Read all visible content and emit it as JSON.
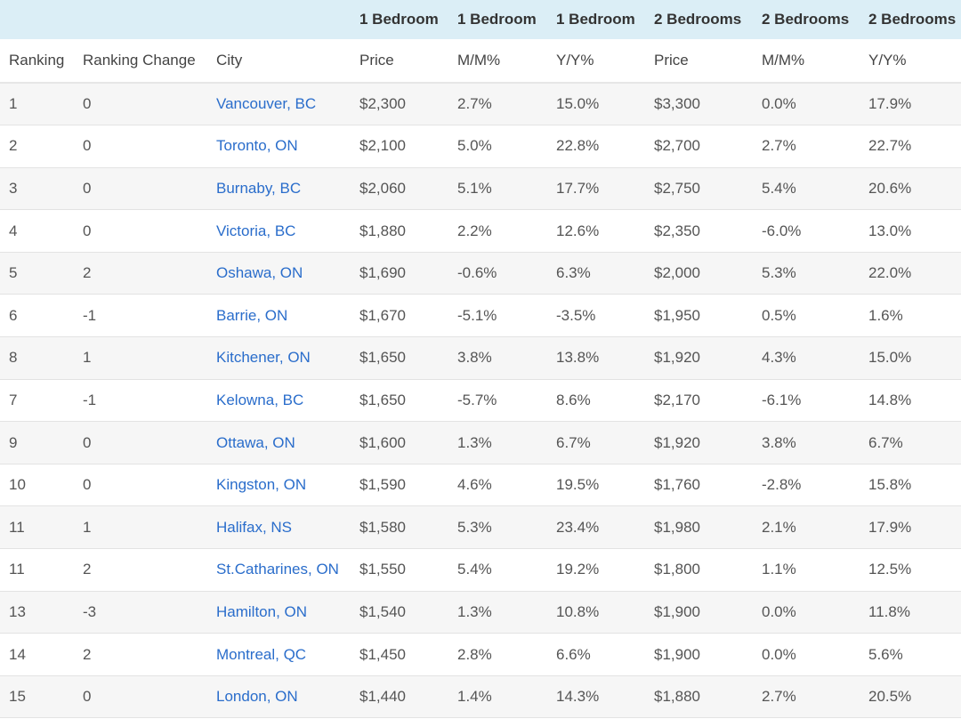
{
  "table": {
    "group_headers": [
      "",
      "",
      "",
      "1 Bedroom",
      "1 Bedroom",
      "1 Bedroom",
      "2 Bedrooms",
      "2 Bedrooms",
      "2 Bedrooms"
    ],
    "sub_headers": [
      "Ranking",
      "Ranking Change",
      "City",
      "Price",
      "M/M%",
      "Y/Y%",
      "Price",
      "M/M%",
      "Y/Y%"
    ],
    "rows": [
      [
        "1",
        "0",
        "Vancouver, BC",
        "$2,300",
        "2.7%",
        "15.0%",
        "$3,300",
        "0.0%",
        "17.9%"
      ],
      [
        "2",
        "0",
        "Toronto, ON",
        "$2,100",
        "5.0%",
        "22.8%",
        "$2,700",
        "2.7%",
        "22.7%"
      ],
      [
        "3",
        "0",
        "Burnaby, BC",
        "$2,060",
        "5.1%",
        "17.7%",
        "$2,750",
        "5.4%",
        "20.6%"
      ],
      [
        "4",
        "0",
        "Victoria, BC",
        "$1,880",
        "2.2%",
        "12.6%",
        "$2,350",
        "-6.0%",
        "13.0%"
      ],
      [
        "5",
        "2",
        "Oshawa, ON",
        "$1,690",
        "-0.6%",
        "6.3%",
        "$2,000",
        "5.3%",
        "22.0%"
      ],
      [
        "6",
        "-1",
        "Barrie, ON",
        "$1,670",
        "-5.1%",
        "-3.5%",
        "$1,950",
        "0.5%",
        "1.6%"
      ],
      [
        "8",
        "1",
        "Kitchener, ON",
        "$1,650",
        "3.8%",
        "13.8%",
        "$1,920",
        "4.3%",
        "15.0%"
      ],
      [
        "7",
        "-1",
        "Kelowna, BC",
        "$1,650",
        "-5.7%",
        "8.6%",
        "$2,170",
        "-6.1%",
        "14.8%"
      ],
      [
        "9",
        "0",
        "Ottawa, ON",
        "$1,600",
        "1.3%",
        "6.7%",
        "$1,920",
        "3.8%",
        "6.7%"
      ],
      [
        "10",
        "0",
        "Kingston, ON",
        "$1,590",
        "4.6%",
        "19.5%",
        "$1,760",
        "-2.8%",
        "15.8%"
      ],
      [
        "11",
        "1",
        "Halifax, NS",
        "$1,580",
        "5.3%",
        "23.4%",
        "$1,980",
        "2.1%",
        "17.9%"
      ],
      [
        "11",
        "2",
        "St.Catharines, ON",
        "$1,550",
        "5.4%",
        "19.2%",
        "$1,800",
        "1.1%",
        "12.5%"
      ],
      [
        "13",
        "-3",
        "Hamilton, ON",
        "$1,540",
        "1.3%",
        "10.8%",
        "$1,900",
        "0.0%",
        "11.8%"
      ],
      [
        "14",
        "2",
        "Montreal, QC",
        "$1,450",
        "2.8%",
        "6.6%",
        "$1,900",
        "0.0%",
        "5.6%"
      ],
      [
        "15",
        "0",
        "London, ON",
        "$1,440",
        "1.4%",
        "14.3%",
        "$1,880",
        "2.7%",
        "20.5%"
      ]
    ]
  },
  "colors": {
    "header_background": "#dbeef6",
    "link": "#2a6dcb",
    "row_stripe": "#f6f6f6",
    "text": "#555555"
  }
}
